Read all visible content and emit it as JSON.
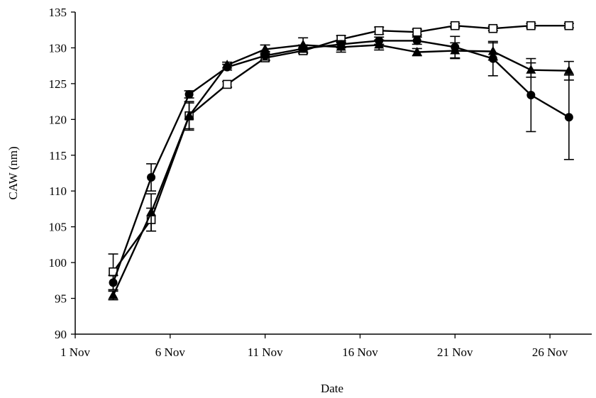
{
  "chart_data": {
    "type": "line",
    "xlabel": "Date",
    "ylabel": "CAW (nm)",
    "ylim": [
      90,
      135
    ],
    "y_ticks": [
      90,
      95,
      100,
      105,
      110,
      115,
      120,
      125,
      130,
      135
    ],
    "x_tick_labels": [
      "1 Nov",
      "6 Nov",
      "11 Nov",
      "16 Nov",
      "21 Nov",
      "26 Nov"
    ],
    "x_tick_days": [
      1,
      6,
      11,
      16,
      21,
      26
    ],
    "xlim_days": [
      1,
      28.2
    ],
    "grid": false,
    "series": [
      {
        "marker": "open-square",
        "x_days": [
          3,
          5,
          7,
          9,
          11,
          13,
          15,
          17,
          19,
          21,
          23,
          25,
          27
        ],
        "values": [
          98.7,
          106.0,
          120.5,
          124.9,
          128.6,
          129.6,
          131.2,
          132.4,
          132.2,
          133.1,
          132.7,
          133.1,
          133.1
        ],
        "errors": [
          2.5,
          1.6,
          2.0,
          0.4,
          0.4,
          0.4,
          0.5,
          0.5,
          0.4,
          0.3,
          0.3,
          0.3,
          0.3
        ]
      },
      {
        "marker": "filled-circle",
        "x_days": [
          3,
          5,
          7,
          9,
          11,
          13,
          15,
          17,
          19,
          21,
          23,
          25,
          27
        ],
        "values": [
          97.2,
          111.9,
          123.5,
          127.3,
          128.9,
          129.9,
          130.5,
          131.0,
          131.0,
          130.1,
          128.5,
          123.4,
          120.3
        ],
        "errors": [
          1.0,
          1.9,
          0.5,
          0.4,
          0.6,
          0.5,
          0.5,
          0.5,
          0.5,
          1.5,
          2.4,
          5.1,
          5.9
        ]
      },
      {
        "marker": "filled-triangle",
        "x_days": [
          3,
          5,
          7,
          9,
          11,
          13,
          15,
          17,
          19,
          21,
          23,
          25,
          27
        ],
        "values": [
          95.4,
          107.0,
          120.5,
          127.6,
          129.8,
          130.4,
          130.1,
          130.4,
          129.4,
          129.6,
          129.5,
          126.9,
          126.8
        ],
        "errors": [
          0.6,
          2.6,
          1.8,
          0.4,
          0.6,
          1.0,
          0.7,
          0.7,
          0.5,
          1.1,
          1.2,
          1.0,
          1.3
        ]
      }
    ]
  }
}
